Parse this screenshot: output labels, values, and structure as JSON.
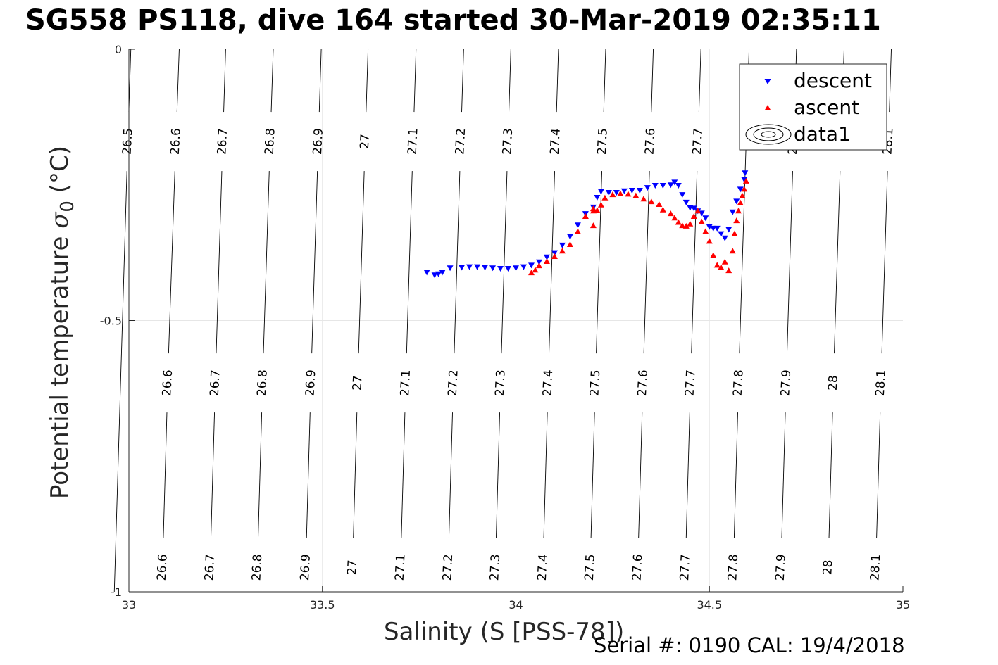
{
  "title": "SG558 PS118, dive 164 started 30-Mar-2019 02:35:11",
  "footer": "Serial #: 0190  CAL: 19/4/2018",
  "chart_data": {
    "type": "scatter",
    "xlabel": "Salinity (S [PSS-78])",
    "ylabel_text": "Potential temperature ",
    "ylabel_symbol": "σ",
    "ylabel_sub": "0",
    "ylabel_unit": " (°C)",
    "xlim": [
      33,
      35
    ],
    "ylim": [
      -1,
      0
    ],
    "xticks": [
      33,
      33.5,
      34,
      34.5,
      35
    ],
    "yticks": [
      0,
      -0.5,
      -1
    ],
    "xtick_labels": [
      "33",
      "33.5",
      "34",
      "34.5",
      "35"
    ],
    "ytick_labels": [
      "0",
      "-0.5",
      "-1"
    ],
    "grid": true,
    "legend_position": "top-right",
    "legend": [
      "descent",
      "ascent",
      "data1"
    ],
    "series": [
      {
        "name": "descent",
        "color": "#0000ff",
        "marker": "triangle-down",
        "points": [
          [
            33.77,
            -0.411
          ],
          [
            33.79,
            -0.416
          ],
          [
            33.8,
            -0.414
          ],
          [
            33.81,
            -0.411
          ],
          [
            33.83,
            -0.403
          ],
          [
            33.86,
            -0.402
          ],
          [
            33.88,
            -0.401
          ],
          [
            33.9,
            -0.401
          ],
          [
            33.92,
            -0.402
          ],
          [
            33.94,
            -0.403
          ],
          [
            33.96,
            -0.404
          ],
          [
            33.98,
            -0.404
          ],
          [
            34.0,
            -0.403
          ],
          [
            34.02,
            -0.401
          ],
          [
            34.04,
            -0.398
          ],
          [
            34.06,
            -0.392
          ],
          [
            34.08,
            -0.383
          ],
          [
            34.1,
            -0.375
          ],
          [
            34.12,
            -0.361
          ],
          [
            34.14,
            -0.345
          ],
          [
            34.16,
            -0.324
          ],
          [
            34.18,
            -0.303
          ],
          [
            34.2,
            -0.291
          ],
          [
            34.21,
            -0.273
          ],
          [
            34.22,
            -0.262
          ],
          [
            34.24,
            -0.264
          ],
          [
            34.26,
            -0.264
          ],
          [
            34.28,
            -0.261
          ],
          [
            34.3,
            -0.26
          ],
          [
            34.32,
            -0.26
          ],
          [
            34.34,
            -0.255
          ],
          [
            34.36,
            -0.251
          ],
          [
            34.38,
            -0.251
          ],
          [
            34.4,
            -0.25
          ],
          [
            34.41,
            -0.245
          ],
          [
            34.42,
            -0.251
          ],
          [
            34.43,
            -0.268
          ],
          [
            34.44,
            -0.282
          ],
          [
            34.45,
            -0.292
          ],
          [
            34.46,
            -0.293
          ],
          [
            34.47,
            -0.298
          ],
          [
            34.48,
            -0.302
          ],
          [
            34.49,
            -0.311
          ],
          [
            34.5,
            -0.327
          ],
          [
            34.51,
            -0.33
          ],
          [
            34.52,
            -0.33
          ],
          [
            34.53,
            -0.34
          ],
          [
            34.54,
            -0.348
          ],
          [
            34.55,
            -0.332
          ],
          [
            34.56,
            -0.3
          ],
          [
            34.57,
            -0.28
          ],
          [
            34.58,
            -0.258
          ],
          [
            34.59,
            -0.24
          ],
          [
            34.592,
            -0.228
          ]
        ]
      },
      {
        "name": "ascent",
        "color": "#ff0000",
        "marker": "triangle-up",
        "points": [
          [
            34.04,
            -0.412
          ],
          [
            34.05,
            -0.407
          ],
          [
            34.06,
            -0.399
          ],
          [
            34.08,
            -0.391
          ],
          [
            34.1,
            -0.382
          ],
          [
            34.12,
            -0.372
          ],
          [
            34.14,
            -0.36
          ],
          [
            34.16,
            -0.336
          ],
          [
            34.18,
            -0.308
          ],
          [
            34.2,
            -0.298
          ],
          [
            34.21,
            -0.297
          ],
          [
            34.22,
            -0.287
          ],
          [
            34.23,
            -0.274
          ],
          [
            34.25,
            -0.268
          ],
          [
            34.27,
            -0.266
          ],
          [
            34.29,
            -0.267
          ],
          [
            34.31,
            -0.27
          ],
          [
            34.33,
            -0.276
          ],
          [
            34.35,
            -0.281
          ],
          [
            34.37,
            -0.286
          ],
          [
            34.38,
            -0.296
          ],
          [
            34.4,
            -0.303
          ],
          [
            34.41,
            -0.311
          ],
          [
            34.42,
            -0.319
          ],
          [
            34.43,
            -0.325
          ],
          [
            34.44,
            -0.326
          ],
          [
            34.45,
            -0.322
          ],
          [
            34.46,
            -0.308
          ],
          [
            34.47,
            -0.298
          ],
          [
            34.48,
            -0.318
          ],
          [
            34.49,
            -0.336
          ],
          [
            34.5,
            -0.354
          ],
          [
            34.51,
            -0.38
          ],
          [
            34.52,
            -0.398
          ],
          [
            34.53,
            -0.402
          ],
          [
            34.54,
            -0.392
          ],
          [
            34.55,
            -0.408
          ],
          [
            34.56,
            -0.372
          ],
          [
            34.565,
            -0.34
          ],
          [
            34.57,
            -0.316
          ],
          [
            34.575,
            -0.298
          ],
          [
            34.58,
            -0.283
          ],
          [
            34.585,
            -0.27
          ],
          [
            34.59,
            -0.258
          ],
          [
            34.595,
            -0.243
          ],
          [
            34.2,
            -0.325
          ],
          [
            34.2,
            -0.294
          ]
        ]
      }
    ],
    "isopycnals": [
      {
        "label": "26.5",
        "x_top": 33.005,
        "x_mid": null,
        "x_bot": null
      },
      {
        "label": "26.6",
        "x_top": 33.13,
        "x_mid": 33.105,
        "x_bot": 33.085
      },
      {
        "label": "26.7",
        "x_top": 33.25,
        "x_mid": 33.228,
        "x_bot": 33.208
      },
      {
        "label": "26.8",
        "x_top": 33.373,
        "x_mid": 33.35,
        "x_bot": 33.33
      },
      {
        "label": "26.9",
        "x_top": 33.497,
        "x_mid": 33.475,
        "x_bot": 33.455
      },
      {
        "label": "27",
        "x_top": 33.618,
        "x_mid": 33.596,
        "x_bot": 33.576
      },
      {
        "label": "27.1",
        "x_top": 33.742,
        "x_mid": 33.72,
        "x_bot": 33.7
      },
      {
        "label": "27.2",
        "x_top": 33.865,
        "x_mid": 33.843,
        "x_bot": 33.823
      },
      {
        "label": "27.3",
        "x_top": 33.987,
        "x_mid": 33.965,
        "x_bot": 33.945
      },
      {
        "label": "27.4",
        "x_top": 34.11,
        "x_mid": 34.088,
        "x_bot": 34.068
      },
      {
        "label": "27.5",
        "x_top": 34.232,
        "x_mid": 34.21,
        "x_bot": 34.19
      },
      {
        "label": "27.6",
        "x_top": 34.355,
        "x_mid": 34.333,
        "x_bot": 34.313
      },
      {
        "label": "27.7",
        "x_top": 34.478,
        "x_mid": 34.456,
        "x_bot": 34.436
      },
      {
        "label": "27.8",
        "x_top": null,
        "x_mid": 34.58,
        "x_bot": 34.56
      },
      {
        "label": "27.9",
        "x_top": 34.725,
        "x_mid": 34.703,
        "x_bot": 34.683
      },
      {
        "label": "28",
        "x_top": 34.848,
        "x_mid": 34.825,
        "x_bot": 34.805
      },
      {
        "label": "28.1",
        "x_top": 34.97,
        "x_mid": 34.948,
        "x_bot": 34.928
      }
    ]
  }
}
